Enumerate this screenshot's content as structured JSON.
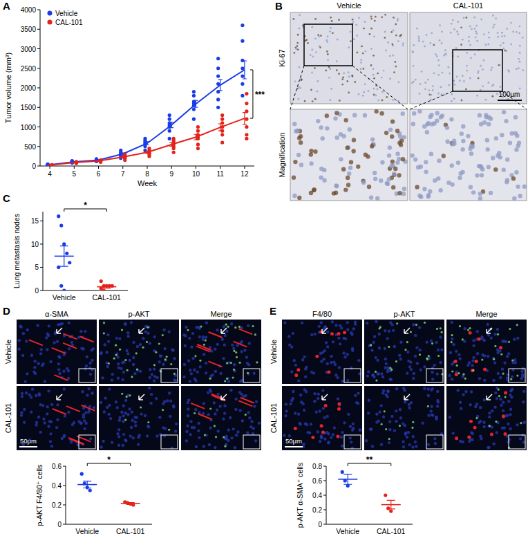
{
  "figure": {
    "panel_labels": [
      "A",
      "B",
      "C",
      "D",
      "E"
    ],
    "B": {
      "columns": [
        "Vehicle",
        "CAL-101"
      ],
      "rows": [
        "Ki-67",
        "Magnification"
      ],
      "scale_bar": "100μm"
    },
    "D": {
      "columns": [
        "α-SMA",
        "p-AKT",
        "Merge"
      ],
      "rows": [
        "Vehicle",
        "CAL-101"
      ],
      "scale_bar": "50μm"
    },
    "E": {
      "columns": [
        "F4/80",
        "p-AKT",
        "Merge"
      ],
      "rows": [
        "Vehicle",
        "CAL-101"
      ],
      "scale_bar": "50μm"
    }
  },
  "chart_data": [
    {
      "type": "line",
      "x": [
        4,
        5,
        6,
        7,
        8,
        9,
        10,
        11,
        12
      ],
      "xlim": [
        3.6,
        12.4
      ],
      "xticks": [
        4,
        5,
        6,
        7,
        8,
        9,
        10,
        11,
        12
      ],
      "ylim": [
        0,
        4000
      ],
      "yticks": [
        0,
        500,
        1000,
        1500,
        2000,
        2500,
        3000,
        3500,
        4000
      ],
      "x_label": "Week",
      "y_label": "Tumor volume (mm³)",
      "legend": "top-left",
      "marker": "circle",
      "annotations": [
        "***"
      ],
      "series": [
        {
          "name": "Vehicle",
          "color": "#1a3de6",
          "values": [
            30,
            105,
            150,
            310,
            580,
            1050,
            1590,
            2070,
            2460
          ],
          "error": [
            5,
            10,
            10,
            25,
            40,
            70,
            90,
            140,
            230
          ],
          "points": [
            [
              20,
              30,
              35,
              40,
              25,
              30,
              45
            ],
            [
              80,
              100,
              120,
              90,
              110,
              130,
              95
            ],
            [
              120,
              150,
              180,
              140,
              170,
              130,
              160
            ],
            [
              200,
              280,
              350,
              300,
              250,
              400,
              320
            ],
            [
              400,
              500,
              620,
              700,
              550,
              650,
              580
            ],
            [
              700,
              900,
              1050,
              1200,
              1100,
              1300,
              1000
            ],
            [
              1200,
              1450,
              1600,
              1800,
              1900,
              1650,
              1550
            ],
            [
              1500,
              1700,
              1900,
              2100,
              2300,
              2500,
              2750
            ],
            [
              1800,
              2100,
              2300,
              2500,
              2700,
              3200,
              3600
            ]
          ]
        },
        {
          "name": "CAL-101",
          "color": "#e3231b",
          "values": [
            20,
            90,
            130,
            230,
            350,
            550,
            740,
            990,
            1220
          ],
          "error": [
            3,
            6,
            8,
            20,
            25,
            45,
            70,
            90,
            150
          ],
          "points": [
            [
              10,
              15,
              20,
              25,
              20,
              30,
              15
            ],
            [
              70,
              80,
              100,
              90,
              85,
              95,
              110
            ],
            [
              100,
              120,
              140,
              130,
              150,
              110,
              135
            ],
            [
              150,
              200,
              250,
              230,
              270,
              300,
              210
            ],
            [
              250,
              300,
              350,
              400,
              380,
              320,
              450
            ],
            [
              350,
              450,
              500,
              600,
              700,
              550,
              650
            ],
            [
              450,
              550,
              700,
              800,
              900,
              1000,
              750
            ],
            [
              600,
              800,
              900,
              1100,
              1300,
              1000,
              1200
            ],
            [
              700,
              800,
              1000,
              1200,
              1400,
              1600,
              1850
            ]
          ]
        }
      ]
    },
    {
      "type": "scatter",
      "categories": [
        "Vehicle",
        "CAL-101"
      ],
      "colors": [
        "#1a3de6",
        "#e3231b"
      ],
      "ylim": [
        0,
        17
      ],
      "yticks": [
        0,
        5,
        10,
        15
      ],
      "y_label": "Lung metastasis nodes",
      "annotations": [
        "*"
      ],
      "values": [
        7.4,
        0.8
      ],
      "error": [
        2.2,
        0.3
      ],
      "points": [
        [
          16,
          14,
          10,
          8,
          6,
          5,
          1,
          0
        ],
        [
          2,
          1,
          1,
          1,
          1,
          0.5,
          0
        ]
      ]
    },
    {
      "type": "scatter",
      "categories": [
        "Vehicle",
        "CAL-101"
      ],
      "colors": [
        "#1a3de6",
        "#e3231b"
      ],
      "ylim": [
        0,
        0.6
      ],
      "yticks": [
        0,
        0.2,
        0.4,
        0.6
      ],
      "y_label": "p-AKT F4/80⁺ cells",
      "annotations": [
        "*"
      ],
      "values": [
        0.41,
        0.215
      ],
      "error": [
        0.035,
        0.01
      ],
      "points": [
        [
          0.52,
          0.42,
          0.38,
          0.35
        ],
        [
          0.23,
          0.22,
          0.21,
          0.2
        ]
      ]
    },
    {
      "type": "scatter",
      "categories": [
        "Vehicle",
        "CAL-101"
      ],
      "colors": [
        "#1a3de6",
        "#e3231b"
      ],
      "ylim": [
        0,
        0.8
      ],
      "yticks": [
        0,
        0.2,
        0.4,
        0.6,
        0.8
      ],
      "y_label": "p-AKT α-SMA⁺ cells",
      "annotations": [
        "**"
      ],
      "values": [
        0.62,
        0.27
      ],
      "error": [
        0.07,
        0.06
      ],
      "points": [
        [
          0.72,
          0.6,
          0.53
        ],
        [
          0.4,
          0.22,
          0.18
        ]
      ]
    }
  ]
}
